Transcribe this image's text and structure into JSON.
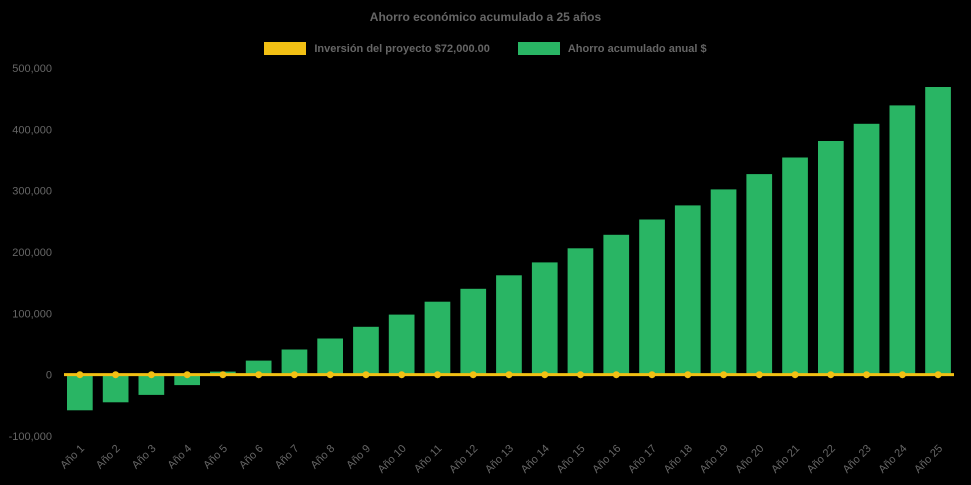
{
  "colors": {
    "background": "#000000",
    "bar": "#29b564",
    "line": "#f2c014",
    "text": "#666666"
  },
  "chart_data": {
    "type": "bar",
    "title": "Ahorro económico acumulado a 25 años",
    "categories": [
      "Año 1",
      "Año 2",
      "Año 3",
      "Año 4",
      "Año 5",
      "Año 6",
      "Año 7",
      "Año 8",
      "Año 9",
      "Año 10",
      "Año 11",
      "Año 12",
      "Año 13",
      "Año 14",
      "Año 15",
      "Año 16",
      "Año 17",
      "Año 18",
      "Año 19",
      "Año 20",
      "Año 21",
      "Año 22",
      "Año 23",
      "Año 24",
      "Año 25"
    ],
    "series": [
      {
        "name": "Inversión del proyecto $72,000.00",
        "type": "line",
        "color": "#f2c014",
        "values": [
          0,
          0,
          0,
          0,
          0,
          0,
          0,
          0,
          0,
          0,
          0,
          0,
          0,
          0,
          0,
          0,
          0,
          0,
          0,
          0,
          0,
          0,
          0,
          0,
          0
        ]
      },
      {
        "name": "Ahorro acumulado anual $",
        "type": "bar",
        "color": "#29b564",
        "values": [
          -58000,
          -45000,
          -33000,
          -17000,
          5000,
          23000,
          41000,
          59000,
          78000,
          98000,
          119000,
          140000,
          162000,
          183000,
          206000,
          228000,
          253000,
          276000,
          302000,
          327000,
          354000,
          381000,
          409000,
          439000,
          469000
        ]
      }
    ],
    "ylim": [
      -100000,
      500000
    ],
    "yticks": [
      -100000,
      0,
      100000,
      200000,
      300000,
      400000,
      500000
    ],
    "ytick_labels": [
      "-100,000",
      "0",
      "100,000",
      "200,000",
      "300,000",
      "400,000",
      "500,000"
    ],
    "grid": false,
    "legend_position": "top"
  }
}
